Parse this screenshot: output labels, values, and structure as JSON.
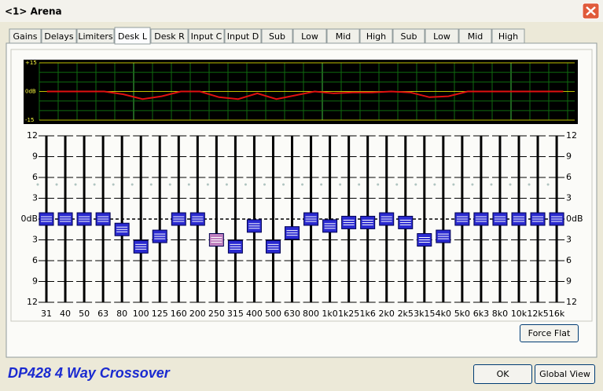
{
  "window": {
    "title": "<1> Arena"
  },
  "tabs": [
    "Gains",
    "Delays",
    "Limiters",
    "Desk L",
    "Desk R",
    "Input C",
    "Input D",
    "Sub",
    "Low",
    "Mid",
    "High",
    "Sub",
    "Low",
    "Mid",
    "High"
  ],
  "graph": {
    "ylim": [
      -15,
      15
    ],
    "labels": [
      {
        "value": 15,
        "label": "+15"
      },
      {
        "value": 0,
        "label": "0dB"
      },
      {
        "value": -15,
        "label": "-15"
      }
    ],
    "curve_color": "#e01010"
  },
  "eq": {
    "ylim": [
      -12,
      12
    ],
    "ticks": [
      12,
      9,
      6,
      3,
      {
        "value": 0,
        "label": "0dB"
      },
      {
        "value": -3,
        "label": "3"
      },
      {
        "value": -6,
        "label": "6"
      },
      {
        "value": -9,
        "label": "9"
      },
      {
        "value": -12,
        "label": "12"
      }
    ],
    "handle_color": "#2a2ad0",
    "bands": [
      {
        "label": "31",
        "gain": 0
      },
      {
        "label": "40",
        "gain": 0
      },
      {
        "label": "50",
        "gain": 0
      },
      {
        "label": "63",
        "gain": 0
      },
      {
        "label": "80",
        "gain": -1.5
      },
      {
        "label": "100",
        "gain": -4
      },
      {
        "label": "125",
        "gain": -2.5
      },
      {
        "label": "160",
        "gain": 0
      },
      {
        "label": "200",
        "gain": 0
      },
      {
        "label": "250",
        "gain": -3,
        "color": "#c080c0"
      },
      {
        "label": "315",
        "gain": -4
      },
      {
        "label": "400",
        "gain": -1
      },
      {
        "label": "500",
        "gain": -4
      },
      {
        "label": "630",
        "gain": -2
      },
      {
        "label": "800",
        "gain": 0
      },
      {
        "label": "1k0",
        "gain": -1
      },
      {
        "label": "1k25",
        "gain": -0.5
      },
      {
        "label": "1k6",
        "gain": -0.5
      },
      {
        "label": "2k0",
        "gain": 0
      },
      {
        "label": "2k5",
        "gain": -0.5
      },
      {
        "label": "3k15",
        "gain": -3
      },
      {
        "label": "4k0",
        "gain": -2.5
      },
      {
        "label": "5k0",
        "gain": 0
      },
      {
        "label": "6k3",
        "gain": 0
      },
      {
        "label": "8k0",
        "gain": 0
      },
      {
        "label": "10k",
        "gain": 0
      },
      {
        "label": "12k5",
        "gain": 0
      },
      {
        "label": "16k",
        "gain": 0
      }
    ]
  },
  "footer": {
    "product": "DP428 4 Way Crossover"
  },
  "buttons": {
    "force_flat": "Force Flat",
    "ok": "OK",
    "global_view": "Global View"
  }
}
